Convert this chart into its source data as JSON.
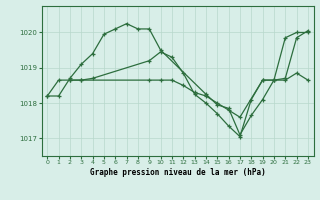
{
  "title": "Graphe pression niveau de la mer (hPa)",
  "background_color": "#d8eee8",
  "grid_color": "#b8d8cc",
  "line_color": "#2d6e3e",
  "xlim": [
    -0.5,
    23.5
  ],
  "ylim": [
    1016.5,
    1020.75
  ],
  "yticks": [
    1017,
    1018,
    1019,
    1020
  ],
  "xticks": [
    0,
    1,
    2,
    3,
    4,
    5,
    6,
    7,
    8,
    9,
    10,
    11,
    12,
    13,
    14,
    15,
    16,
    17,
    18,
    19,
    20,
    21,
    22,
    23
  ],
  "line1_x": [
    0,
    1,
    2,
    3,
    4,
    5,
    6,
    7,
    8,
    9,
    10,
    14,
    15,
    16,
    17,
    18,
    19,
    20,
    21,
    22,
    23
  ],
  "line1_y": [
    1018.2,
    1018.2,
    1018.7,
    1019.1,
    1019.4,
    1019.95,
    1020.1,
    1020.25,
    1020.1,
    1020.1,
    1019.5,
    1018.25,
    1017.95,
    1017.85,
    1017.1,
    1017.65,
    1018.1,
    1018.65,
    1018.7,
    1019.85,
    1020.05
  ],
  "line2_x": [
    0,
    1,
    2,
    3,
    9,
    10,
    11,
    12,
    13,
    14,
    15,
    16,
    17,
    19,
    20,
    21,
    22,
    23
  ],
  "line2_y": [
    1018.2,
    1018.65,
    1018.65,
    1018.65,
    1018.65,
    1018.65,
    1018.65,
    1018.5,
    1018.3,
    1018.2,
    1018.0,
    1017.8,
    1017.6,
    1018.65,
    1018.65,
    1018.65,
    1018.85,
    1018.65
  ],
  "line3_x": [
    2,
    3,
    4,
    9,
    10,
    11,
    12,
    13,
    14,
    15,
    16,
    17,
    18,
    19,
    20,
    21,
    22,
    23
  ],
  "line3_y": [
    1018.65,
    1018.65,
    1018.7,
    1019.2,
    1019.45,
    1019.3,
    1018.85,
    1018.25,
    1018.0,
    1017.7,
    1017.35,
    1017.05,
    1018.1,
    1018.65,
    1018.65,
    1019.85,
    1020.0,
    1020.0
  ]
}
